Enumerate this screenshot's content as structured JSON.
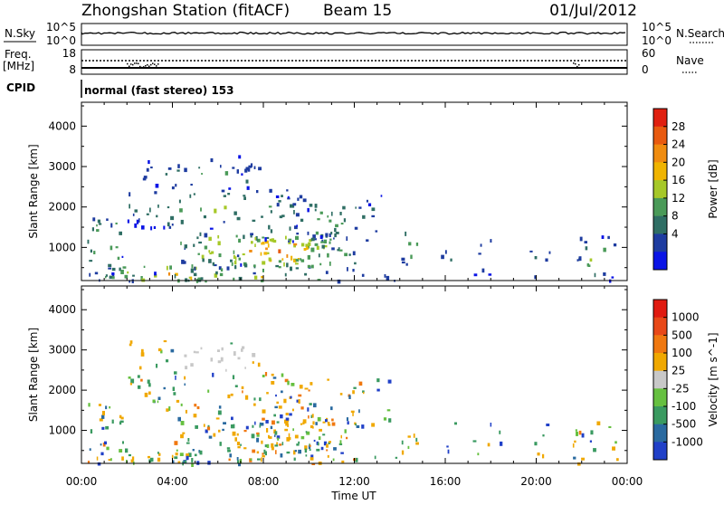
{
  "header": {
    "station": "Zhongshan Station (fitACF)",
    "beam": "Beam 15",
    "date": "01/Jul/2012"
  },
  "noise_panel": {
    "left_label": "N.Sky",
    "left_ticks": [
      "10^5",
      "10^0"
    ],
    "right_ticks": [
      "10^5",
      "10^0"
    ],
    "right_label": "N.Search"
  },
  "freq_panel": {
    "left_label_1": "Freq.",
    "left_label_2": "[MHz]",
    "left_ticks": [
      "18",
      "8"
    ],
    "right_ticks": [
      "60",
      "0"
    ],
    "right_label": "Nave"
  },
  "cpid": {
    "label": "CPID",
    "value": "normal (fast stereo) 153"
  },
  "chart_data": [
    {
      "type": "heatmap",
      "name": "power",
      "ylabel": "Slant Range [km]",
      "xlabel": "",
      "ylim": [
        180,
        4590
      ],
      "xlim_hours": [
        0,
        24
      ],
      "yticks": [
        "4000",
        "3000",
        "2000",
        "1000"
      ],
      "colorbar": {
        "label": "Power [dB]",
        "ticks": [
          "28",
          "24",
          "20",
          "16",
          "12",
          "8",
          "4"
        ],
        "colors": [
          "#0a14e6",
          "#1e3ca0",
          "#2f6e64",
          "#4a9a58",
          "#a6c828",
          "#f0b400",
          "#f08c10",
          "#e85a10",
          "#e02010"
        ]
      },
      "blobs": [
        {
          "t0": 0.2,
          "t1": 1.8,
          "r0": 300,
          "r1": 1900,
          "d": 0.55
        },
        {
          "t0": 1.0,
          "t1": 7.0,
          "r0": 200,
          "r1": 600,
          "d": 0.75
        },
        {
          "t0": 2.5,
          "t1": 7.8,
          "r0": 2500,
          "r1": 3100,
          "d": 0.42
        },
        {
          "t0": 2.0,
          "t1": 10.0,
          "r0": 1500,
          "r1": 2500,
          "d": 0.45
        },
        {
          "t0": 4.0,
          "t1": 12.0,
          "r0": 400,
          "r1": 1500,
          "d": 0.65
        },
        {
          "t0": 6.5,
          "t1": 11.0,
          "r0": 500,
          "r1": 1400,
          "d": 0.7
        },
        {
          "t0": 8.0,
          "t1": 13.5,
          "r0": 1100,
          "r1": 2300,
          "d": 0.4
        },
        {
          "t0": 14.0,
          "t1": 14.8,
          "r0": 500,
          "r1": 1500,
          "d": 0.5
        },
        {
          "t0": 15.8,
          "t1": 16.6,
          "r0": 400,
          "r1": 1300,
          "d": 0.25
        },
        {
          "t0": 17.2,
          "t1": 18.4,
          "r0": 300,
          "r1": 1300,
          "d": 0.3
        },
        {
          "t0": 19.6,
          "t1": 20.6,
          "r0": 300,
          "r1": 1200,
          "d": 0.3
        },
        {
          "t0": 21.6,
          "t1": 23.6,
          "r0": 200,
          "r1": 1300,
          "d": 0.45
        },
        {
          "t0": 0.0,
          "t1": 14.0,
          "r0": 180,
          "r1": 400,
          "d": 0.55
        },
        {
          "t0": 2.0,
          "t1": 8.0,
          "r0": 2800,
          "r1": 3300,
          "d": 0.2
        }
      ]
    },
    {
      "type": "heatmap",
      "name": "velocity",
      "ylabel": "Slant Range [km]",
      "xlabel": "Time UT",
      "ylim": [
        180,
        4590
      ],
      "xlim_hours": [
        0,
        24
      ],
      "yticks": [
        "4000",
        "3000",
        "2000",
        "1000"
      ],
      "xticks": [
        "00:00",
        "04:00",
        "08:00",
        "12:00",
        "16:00",
        "20:00",
        "00:00"
      ],
      "colorbar": {
        "label": "Velocity [m s^-1]",
        "ticks": [
          "1000",
          "500",
          "100",
          "25",
          "-25",
          "-100",
          "-500",
          "-1000"
        ],
        "colors": [
          "#2040c8",
          "#2a6aa0",
          "#3a9a60",
          "#66c040",
          "#c8c8c8",
          "#f0a800",
          "#f07810",
          "#e84818",
          "#e01a10"
        ]
      },
      "blobs": [
        {
          "t0": 0.2,
          "t1": 1.8,
          "r0": 300,
          "r1": 1900,
          "d": 0.55
        },
        {
          "t0": 1.0,
          "t1": 7.0,
          "r0": 200,
          "r1": 600,
          "d": 0.75
        },
        {
          "t0": 2.5,
          "t1": 7.8,
          "r0": 2500,
          "r1": 3100,
          "d": 0.42
        },
        {
          "t0": 2.0,
          "t1": 10.0,
          "r0": 1500,
          "r1": 2500,
          "d": 0.45
        },
        {
          "t0": 4.0,
          "t1": 12.0,
          "r0": 400,
          "r1": 1500,
          "d": 0.65
        },
        {
          "t0": 6.5,
          "t1": 11.0,
          "r0": 500,
          "r1": 1400,
          "d": 0.7
        },
        {
          "t0": 8.0,
          "t1": 13.5,
          "r0": 1100,
          "r1": 2300,
          "d": 0.4
        },
        {
          "t0": 14.0,
          "t1": 14.8,
          "r0": 500,
          "r1": 1500,
          "d": 0.5
        },
        {
          "t0": 15.8,
          "t1": 16.6,
          "r0": 400,
          "r1": 1300,
          "d": 0.25
        },
        {
          "t0": 17.2,
          "t1": 18.4,
          "r0": 300,
          "r1": 1300,
          "d": 0.3
        },
        {
          "t0": 19.6,
          "t1": 20.6,
          "r0": 300,
          "r1": 1200,
          "d": 0.3
        },
        {
          "t0": 21.6,
          "t1": 23.6,
          "r0": 200,
          "r1": 1300,
          "d": 0.45
        },
        {
          "t0": 0.0,
          "t1": 14.0,
          "r0": 180,
          "r1": 400,
          "d": 0.55
        },
        {
          "t0": 2.0,
          "t1": 8.0,
          "r0": 2800,
          "r1": 3300,
          "d": 0.2
        }
      ]
    }
  ]
}
